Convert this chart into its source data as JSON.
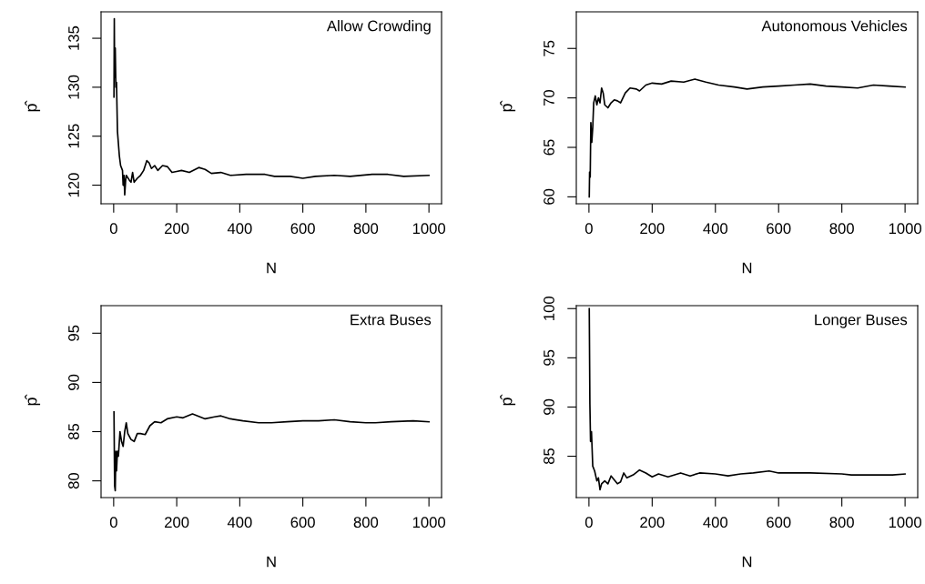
{
  "chart_data": [
    {
      "type": "line",
      "title": "Allow Crowding",
      "xlabel": "N",
      "ylabel": "p̂",
      "xlim": [
        -40,
        1040
      ],
      "ylim": [
        118.1,
        137.7
      ],
      "xticks": [
        0,
        200,
        400,
        600,
        800,
        1000
      ],
      "yticks": [
        120,
        125,
        130,
        135
      ],
      "series": [
        {
          "color": "#000000",
          "x": [
            1,
            2,
            3,
            5,
            7,
            9,
            12,
            18,
            22,
            28,
            30,
            33,
            35,
            38,
            40,
            50,
            55,
            60,
            65,
            75,
            85,
            95,
            105,
            112,
            120,
            130,
            140,
            155,
            170,
            185,
            200,
            215,
            240,
            270,
            290,
            310,
            340,
            370,
            420,
            480,
            510,
            560,
            600,
            640,
            700,
            750,
            820,
            870,
            920,
            1000
          ],
          "values": [
            129,
            137,
            131,
            134,
            130,
            130.5,
            125.5,
            123,
            122,
            121.5,
            120,
            121,
            119,
            120.5,
            121,
            120.5,
            120.3,
            121.3,
            120.3,
            120.7,
            121,
            121.5,
            122.5,
            122.3,
            121.7,
            122,
            121.5,
            122,
            121.9,
            121.3,
            121.4,
            121.5,
            121.3,
            121.8,
            121.6,
            121.2,
            121.3,
            121.0,
            121.1,
            121.1,
            120.9,
            120.9,
            120.7,
            120.9,
            121.0,
            120.9,
            121.1,
            121.1,
            120.9,
            121.0
          ]
        }
      ]
    },
    {
      "type": "line",
      "title": "Autonomous Vehicles",
      "xlabel": "N",
      "ylabel": "p̂",
      "xlim": [
        -40,
        1040
      ],
      "ylim": [
        59.3,
        78.7
      ],
      "xticks": [
        0,
        200,
        400,
        600,
        800,
        1000
      ],
      "yticks": [
        60,
        65,
        70,
        75
      ],
      "series": [
        {
          "color": "#000000",
          "x": [
            1,
            2,
            4,
            6,
            9,
            12,
            15,
            20,
            25,
            30,
            35,
            40,
            45,
            50,
            60,
            70,
            80,
            90,
            100,
            115,
            130,
            150,
            160,
            180,
            200,
            230,
            260,
            300,
            335,
            370,
            410,
            460,
            500,
            550,
            600,
            650,
            700,
            750,
            800,
            850,
            900,
            950,
            1000
          ],
          "values": [
            60,
            62.5,
            62,
            67.5,
            65.5,
            67,
            69.5,
            70.2,
            69.3,
            70,
            69.5,
            71,
            70.5,
            69.3,
            69,
            69.5,
            69.8,
            69.7,
            69.5,
            70.5,
            71,
            70.9,
            70.7,
            71.3,
            71.5,
            71.4,
            71.7,
            71.6,
            71.9,
            71.6,
            71.3,
            71.1,
            70.9,
            71.1,
            71.2,
            71.3,
            71.4,
            71.2,
            71.1,
            71.0,
            71.3,
            71.2,
            71.1
          ]
        }
      ]
    },
    {
      "type": "line",
      "title": "Extra Buses",
      "xlabel": "N",
      "ylabel": "p̂",
      "xlim": [
        -40,
        1040
      ],
      "ylim": [
        78.3,
        97.8
      ],
      "xticks": [
        0,
        200,
        400,
        600,
        800,
        1000
      ],
      "yticks": [
        80,
        85,
        90,
        95
      ],
      "series": [
        {
          "color": "#000000",
          "x": [
            1,
            3,
            5,
            7,
            9,
            12,
            15,
            20,
            25,
            30,
            35,
            40,
            45,
            55,
            65,
            75,
            85,
            100,
            115,
            130,
            150,
            170,
            200,
            220,
            250,
            290,
            320,
            340,
            370,
            410,
            460,
            500,
            550,
            600,
            650,
            700,
            750,
            800,
            830,
            880,
            950,
            1000
          ],
          "values": [
            87,
            79.5,
            79,
            83,
            81,
            83,
            82.5,
            85,
            84,
            83.5,
            85,
            85.9,
            84.8,
            84.2,
            84,
            84.8,
            84.8,
            84.7,
            85.6,
            86,
            85.9,
            86.3,
            86.5,
            86.4,
            86.8,
            86.3,
            86.5,
            86.6,
            86.3,
            86.1,
            85.9,
            85.9,
            86.0,
            86.1,
            86.1,
            86.2,
            86.0,
            85.9,
            85.9,
            86.0,
            86.1,
            86.0
          ]
        }
      ]
    },
    {
      "type": "line",
      "title": "Longer Buses",
      "xlabel": "N",
      "ylabel": "p̂",
      "xlim": [
        -40,
        1040
      ],
      "ylim": [
        80.8,
        100.3
      ],
      "xticks": [
        0,
        200,
        400,
        600,
        800,
        1000
      ],
      "yticks": [
        85,
        90,
        95,
        100
      ],
      "series": [
        {
          "color": "#000000",
          "x": [
            1,
            3,
            5,
            8,
            12,
            18,
            25,
            30,
            35,
            40,
            50,
            60,
            70,
            80,
            90,
            100,
            110,
            120,
            140,
            160,
            180,
            200,
            220,
            250,
            290,
            320,
            350,
            400,
            440,
            480,
            520,
            570,
            600,
            700,
            800,
            830,
            900,
            960,
            1000
          ],
          "values": [
            100,
            90.3,
            86.5,
            87.5,
            84,
            83.5,
            82.5,
            82.8,
            81.6,
            82.2,
            82.5,
            82.2,
            83,
            82.6,
            82.2,
            82.4,
            83.3,
            82.8,
            83.1,
            83.6,
            83.3,
            82.9,
            83.2,
            82.9,
            83.3,
            83,
            83.3,
            83.2,
            83,
            83.2,
            83.3,
            83.5,
            83.3,
            83.3,
            83.2,
            83.1,
            83.1,
            83.1,
            83.2
          ]
        }
      ]
    }
  ]
}
